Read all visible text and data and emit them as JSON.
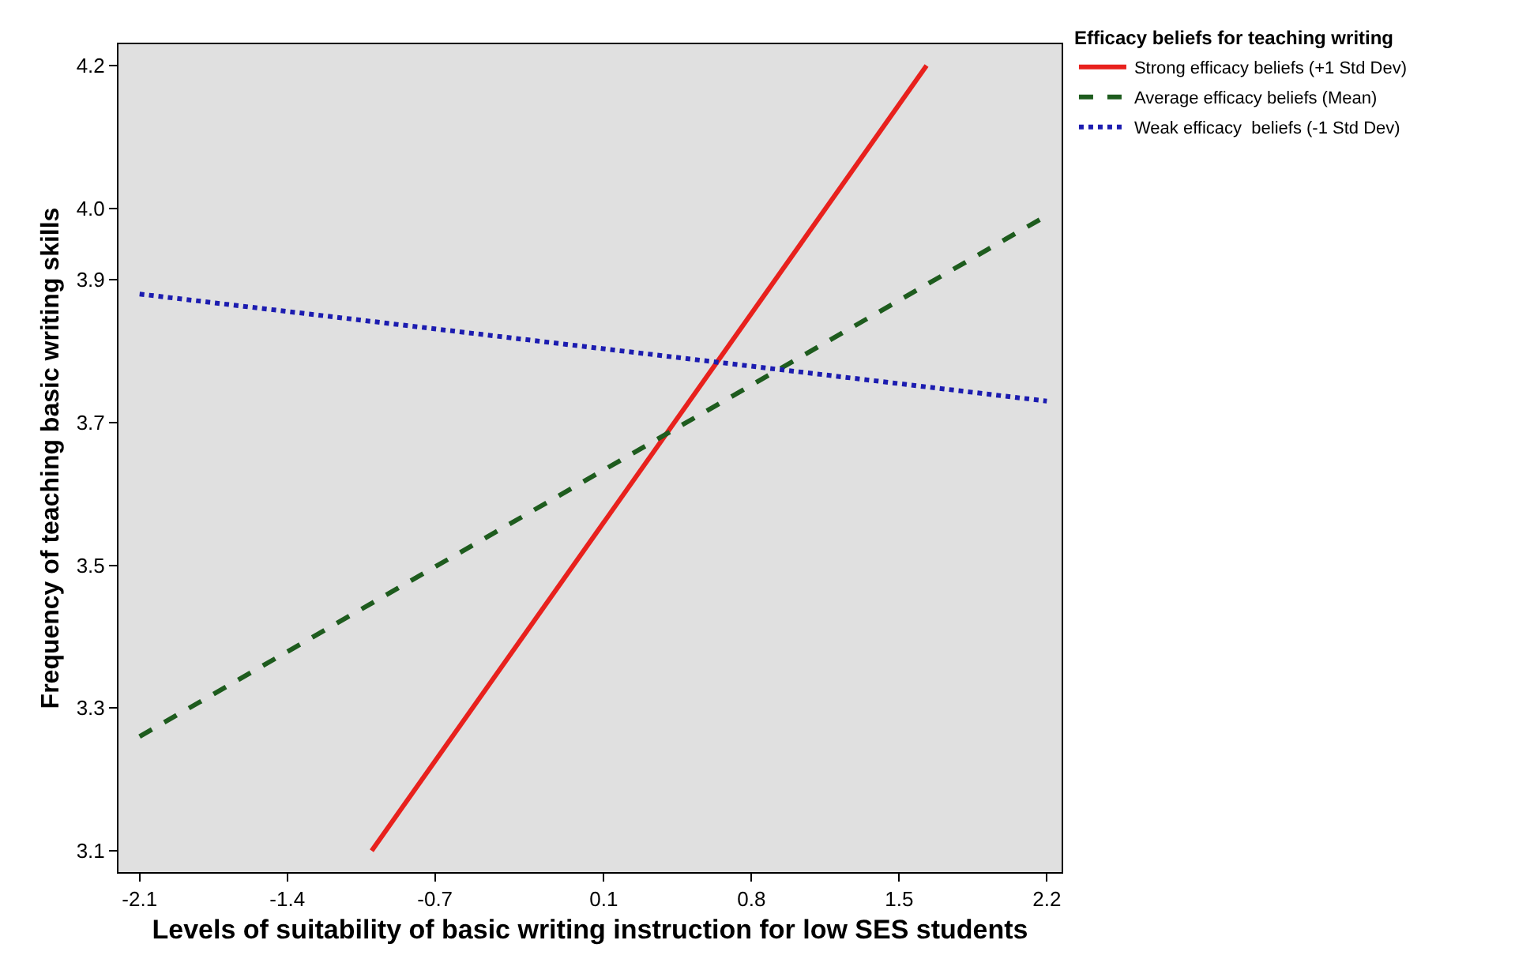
{
  "chart_data": {
    "type": "line",
    "xlabel": "Levels of suitability of basic writing instruction for low SES students",
    "ylabel": "Frequency of teaching basic writing skills",
    "legend_title": "Efficacy beliefs for teaching writing",
    "legend": "top right",
    "grid": false,
    "marker": "none",
    "series": [
      {
        "name": "Strong efficacy beliefs (+1 Std Dev)",
        "color": "#e8211d",
        "line_style": "solid",
        "x": [
          -1.0,
          1.63
        ],
        "values": [
          3.1,
          4.2
        ]
      },
      {
        "name": "Average efficacy beliefs (Mean)",
        "color": "#1e5c1e",
        "line_style": "dashed",
        "x": [
          -2.1,
          2.2
        ],
        "values": [
          3.26,
          3.99
        ]
      },
      {
        "name": "Weak efficacy  beliefs (-1 Std Dev)",
        "color": "#1c1cb0",
        "line_style": "dotted",
        "x": [
          -2.1,
          2.2
        ],
        "values": [
          3.88,
          3.73
        ]
      }
    ],
    "xlim": [
      -2.2,
      2.27
    ],
    "ylim": [
      3.07,
      4.23
    ],
    "xticks": [
      -2.1,
      -1.4,
      -0.7,
      0.1,
      0.8,
      1.5,
      2.2
    ],
    "yticks": [
      3.1,
      3.3,
      3.5,
      3.7,
      3.9,
      {
        "value": 4.0,
        "label": "4.0"
      },
      4.2
    ]
  }
}
